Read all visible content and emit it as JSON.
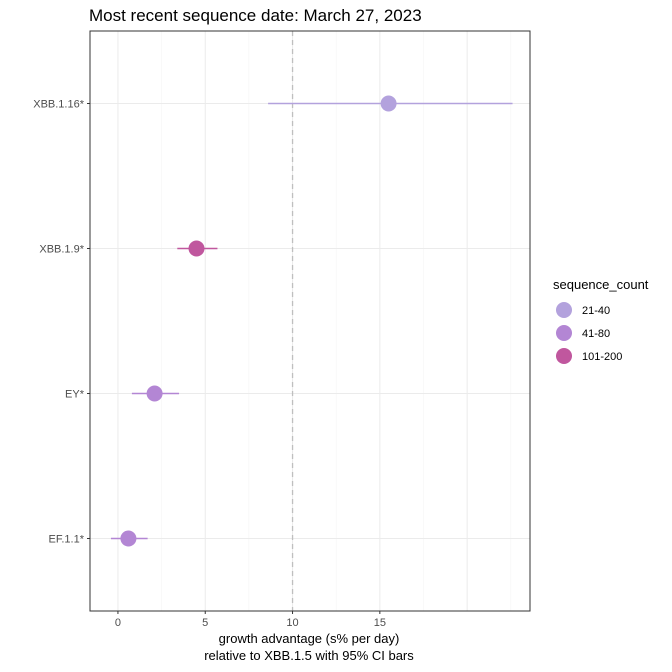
{
  "chart_data": {
    "type": "scatter",
    "title": "Most recent sequence date: March 27, 2023",
    "xlabel_lines": [
      "growth advantage (s% per day)",
      "relative to  XBB.1.5  with 95% CI bars"
    ],
    "ylabel": "",
    "xlim": [
      -1.6,
      23.6
    ],
    "x_ticks": [
      0,
      5,
      10,
      15
    ],
    "x_tick_labels": [
      "0",
      "5",
      "10",
      "15"
    ],
    "reference_line_x": 10,
    "grid": true,
    "legend": {
      "title": "sequence_count",
      "position": "right",
      "entries": [
        {
          "label": "21-40",
          "color": "#b3a2dd"
        },
        {
          "label": "41-80",
          "color": "#b386d4"
        },
        {
          "label": "101-200",
          "color": "#c0579e"
        }
      ]
    },
    "categories": [
      "XBB.1.16*",
      "XBB.1.9*",
      "EY*",
      "EF.1.1*"
    ],
    "points": [
      {
        "lineage": "XBB.1.16*",
        "x": 15.5,
        "ci_low": 8.6,
        "ci_high": 22.6,
        "sequence_count": "21-40",
        "color": "#b3a2dd"
      },
      {
        "lineage": "XBB.1.9*",
        "x": 4.5,
        "ci_low": 3.4,
        "ci_high": 5.7,
        "sequence_count": "101-200",
        "color": "#c0579e"
      },
      {
        "lineage": "EY*",
        "x": 2.1,
        "ci_low": 0.8,
        "ci_high": 3.5,
        "sequence_count": "41-80",
        "color": "#b386d4"
      },
      {
        "lineage": "EF.1.1*",
        "x": 0.6,
        "ci_low": -0.4,
        "ci_high": 1.7,
        "sequence_count": "41-80",
        "color": "#b386d4"
      }
    ]
  },
  "colors": {
    "panel_border": "#333333",
    "grid_major": "#ebebeb",
    "grid_minor": "#f5f5f5",
    "reference_line": "#bfbfbf"
  }
}
